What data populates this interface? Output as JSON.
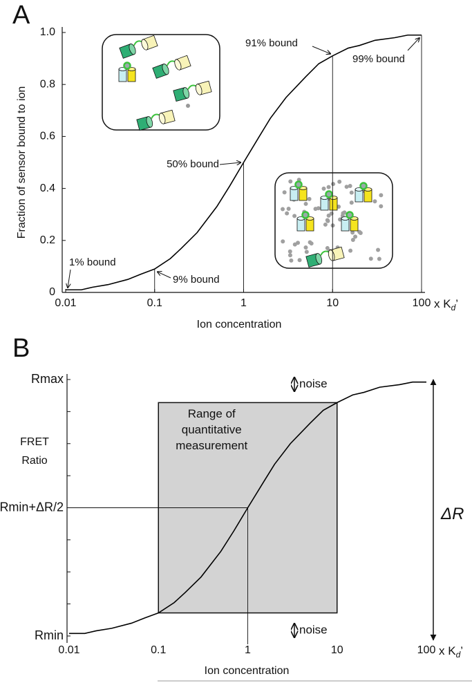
{
  "chart_data": [
    {
      "type": "line",
      "panel_label": "A",
      "y_label": "Fraction of sensor bound to ion",
      "x_label": "Ion concentration",
      "x_unit": [
        "x K",
        "d",
        "’"
      ],
      "log_x": true,
      "color": "#000000",
      "xlim": [
        0.01,
        100
      ],
      "xticks": [
        0.01,
        0.1,
        1,
        10,
        100
      ],
      "ylim": [
        0,
        1
      ],
      "yticks": [
        0,
        0.2,
        0.4,
        0.6,
        0.8,
        {
          "value": 1,
          "label": "1.0"
        }
      ],
      "x": [
        0.01,
        0.015,
        0.02,
        0.03,
        0.05,
        0.07,
        0.1,
        0.15,
        0.2,
        0.3,
        0.5,
        0.7,
        1,
        1.5,
        2,
        3,
        5,
        7,
        10,
        15,
        20,
        30,
        50,
        70,
        100
      ],
      "values": [
        0.01,
        0.01,
        0.02,
        0.03,
        0.05,
        0.07,
        0.09,
        0.13,
        0.17,
        0.23,
        0.33,
        0.41,
        0.5,
        0.6,
        0.67,
        0.75,
        0.83,
        0.88,
        0.91,
        0.94,
        0.95,
        0.97,
        0.98,
        0.99,
        0.99
      ],
      "annotations": [
        {
          "text": "1% bound",
          "x": 0.01,
          "y": 0.01
        },
        {
          "text": "9% bound",
          "x": 0.1,
          "y": 0.09,
          "drop": true
        },
        {
          "text": "50% bound",
          "x": 1,
          "y": 0.5,
          "drop": true
        },
        {
          "text": "91% bound",
          "x": 10,
          "y": 0.91,
          "drop": true
        },
        {
          "text": "99% bound",
          "x": 100,
          "y": 0.99,
          "drop": true
        }
      ]
    },
    {
      "type": "line",
      "panel_label": "B",
      "y_label": [
        "FRET",
        "Ratio"
      ],
      "x_label": "Ion concentration",
      "x_unit": [
        "x K",
        "d",
        "’"
      ],
      "log_x": true,
      "color": "#000000",
      "xlim": [
        0.01,
        100
      ],
      "xticks": [
        0.01,
        0.1,
        1,
        10,
        100
      ],
      "ylim": [
        0,
        1
      ],
      "yticks": [
        {
          "value": 0,
          "label": "Rmin"
        },
        {
          "value": 0.5,
          "label": "Rmin+ΔR/2"
        },
        {
          "value": 1,
          "label": "Rmax"
        }
      ],
      "y_minor_ticks": [
        0.125,
        0.25,
        0.375,
        0.625,
        0.75,
        0.875
      ],
      "x": [
        0.01,
        0.015,
        0.02,
        0.03,
        0.05,
        0.07,
        0.1,
        0.15,
        0.2,
        0.3,
        0.5,
        0.7,
        1,
        1.5,
        2,
        3,
        5,
        7,
        10,
        15,
        20,
        30,
        50,
        70,
        100
      ],
      "values": [
        0.01,
        0.01,
        0.02,
        0.03,
        0.05,
        0.07,
        0.09,
        0.13,
        0.17,
        0.23,
        0.33,
        0.41,
        0.5,
        0.6,
        0.67,
        0.75,
        0.83,
        0.88,
        0.91,
        0.94,
        0.95,
        0.97,
        0.98,
        0.99,
        0.99
      ],
      "range_box": {
        "text": [
          "Range of",
          "quantitative",
          "measurement"
        ],
        "x": [
          0.1,
          10
        ],
        "y": [
          0.09,
          0.91
        ],
        "color": "#d3d3d3"
      },
      "crosshair": {
        "x": 1,
        "y": 0.5
      },
      "noise_labels": [
        "noise",
        "noise"
      ],
      "delta_label": "ΔR"
    }
  ]
}
